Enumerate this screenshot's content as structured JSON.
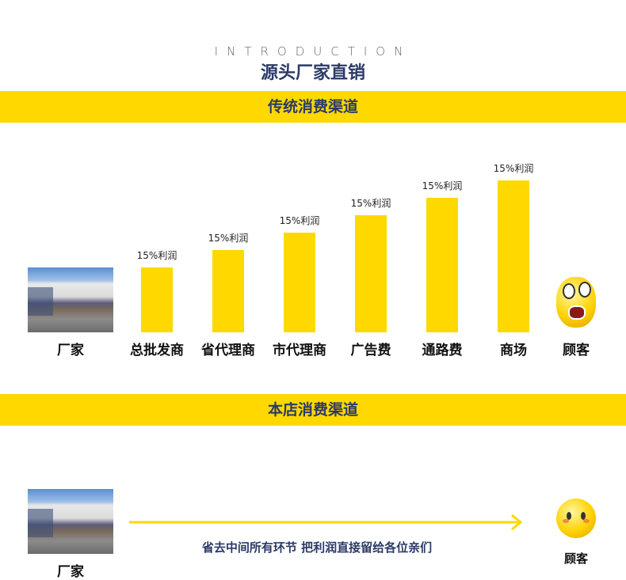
{
  "header": {
    "eyebrow": "INTRODUCTION",
    "title": "源头厂家直销"
  },
  "traditional": {
    "banner": "传统消费渠道",
    "start_label": "厂家",
    "end_label": "顾客",
    "stages": [
      {
        "label": "总批发商",
        "profit": "15%利润"
      },
      {
        "label": "省代理商",
        "profit": "15%利润"
      },
      {
        "label": "市代理商",
        "profit": "15%利润"
      },
      {
        "label": "广告费",
        "profit": "15%利润"
      },
      {
        "label": "通路费",
        "profit": "15%利润"
      },
      {
        "label": "商场",
        "profit": "15%利润"
      }
    ]
  },
  "store": {
    "banner": "本店消费渠道",
    "start_label": "厂家",
    "end_label": "顾客",
    "message": "省去中间所有环节 把利润直接留给各位亲们"
  },
  "colors": {
    "accent": "#FFD800",
    "title": "#2b3a67"
  }
}
